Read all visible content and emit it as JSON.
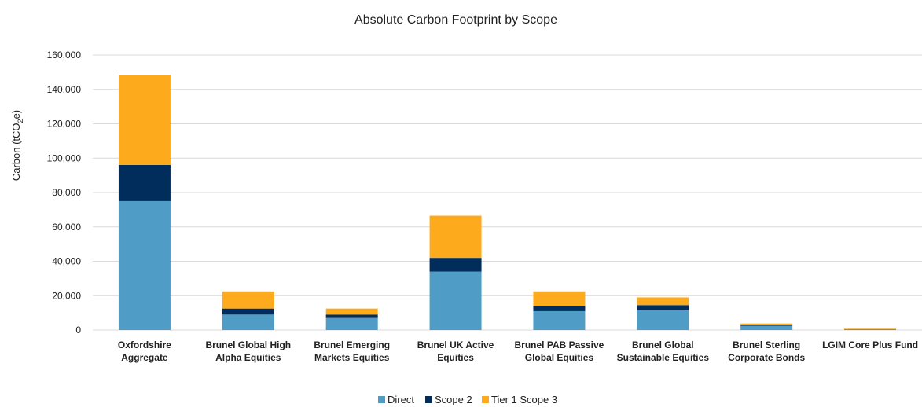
{
  "chart_data": {
    "type": "bar",
    "stacked": true,
    "title": "Absolute Carbon Footprint by Scope",
    "xlabel": "",
    "ylabel": "Carbon (tCO",
    "ylabel_sub": "2",
    "ylabel_end": "e)",
    "ylim": [
      0,
      160000
    ],
    "yticks": [
      "0",
      "20,000",
      "40,000",
      "60,000",
      "80,000",
      "100,000",
      "120,000",
      "140,000",
      "160,000"
    ],
    "ytick_values": [
      0,
      20000,
      40000,
      60000,
      80000,
      100000,
      120000,
      140000,
      160000
    ],
    "grid": true,
    "legend": "bottom",
    "categories": [
      [
        "Oxfordshire",
        "Aggregate"
      ],
      [
        "Brunel Global High",
        "Alpha Equities"
      ],
      [
        "Brunel Emerging",
        "Markets Equities"
      ],
      [
        "Brunel UK Active",
        "Equities"
      ],
      [
        "Brunel PAB Passive",
        "Global Equities"
      ],
      [
        "Brunel Global",
        "Sustainable Equities"
      ],
      [
        "Brunel Sterling",
        "Corporate Bonds"
      ],
      [
        "LGIM Core Plus Fund"
      ]
    ],
    "series": [
      {
        "name": "Direct",
        "color": "#4f9cc6",
        "values": [
          75000,
          9000,
          7000,
          34000,
          11000,
          11500,
          2500,
          400
        ]
      },
      {
        "name": "Scope 2",
        "color": "#002d5b",
        "values": [
          21000,
          3500,
          2000,
          8000,
          3000,
          3000,
          500,
          100
        ]
      },
      {
        "name": "Tier 1 Scope 3",
        "color": "#fdab1c",
        "values": [
          52500,
          10000,
          3500,
          24500,
          8500,
          4500,
          800,
          300
        ]
      }
    ]
  }
}
